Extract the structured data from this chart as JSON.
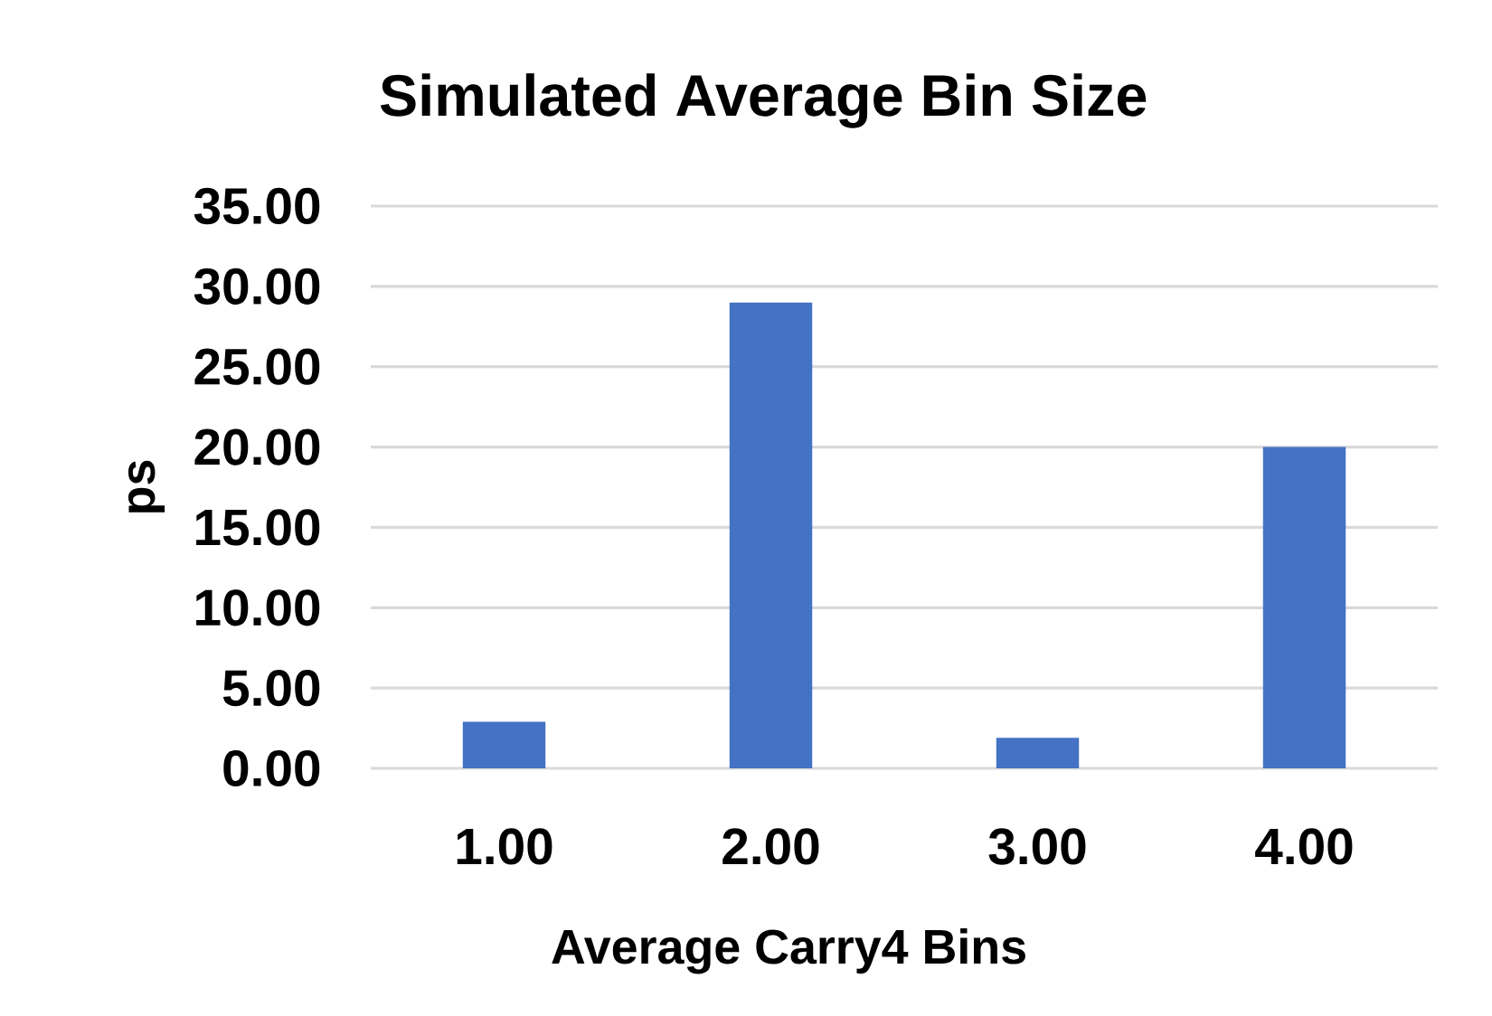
{
  "chart_data": {
    "type": "bar",
    "title": "Simulated Average Bin Size",
    "xlabel": "Average Carry4 Bins",
    "ylabel": "ps",
    "categories": [
      "1.00",
      "2.00",
      "3.00",
      "4.00"
    ],
    "values": [
      2.9,
      29,
      1.9,
      20
    ],
    "color": "#4472c4",
    "ylim": [
      0,
      35
    ],
    "yticks": [
      {
        "value": 0,
        "label": "0.00"
      },
      {
        "value": 5,
        "label": "5.00"
      },
      {
        "value": 10,
        "label": "10.00"
      },
      {
        "value": 15,
        "label": "15.00"
      },
      {
        "value": 20,
        "label": "20.00"
      },
      {
        "value": 25,
        "label": "25.00"
      },
      {
        "value": 30,
        "label": "30.00"
      },
      {
        "value": 35,
        "label": "35.00"
      }
    ],
    "grid": "y"
  }
}
